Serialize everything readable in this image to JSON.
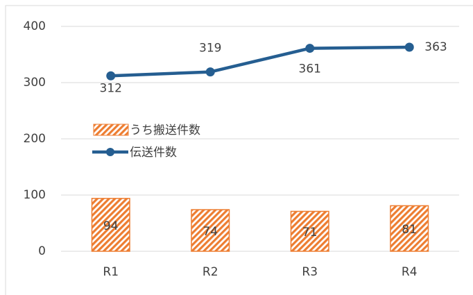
{
  "chart_data": {
    "type": "combo",
    "categories": [
      "R1",
      "R2",
      "R3",
      "R4"
    ],
    "series": [
      {
        "name": "うち搬送件数",
        "type": "bar",
        "color": "#ed7d31",
        "values": [
          94,
          74,
          71,
          81
        ]
      },
      {
        "name": "伝送件数",
        "type": "line",
        "color": "#255e91",
        "values": [
          312,
          319,
          361,
          363
        ]
      }
    ],
    "ylim": [
      0,
      400
    ],
    "yticks": [
      0,
      100,
      200,
      300,
      400
    ],
    "grid": true
  }
}
